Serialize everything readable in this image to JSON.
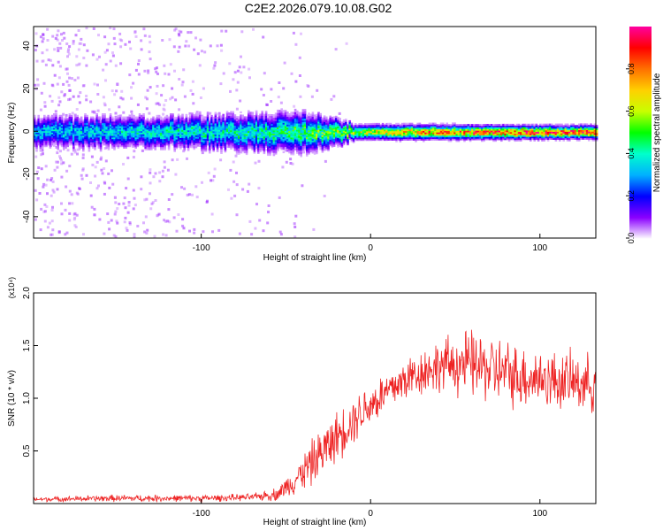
{
  "figure_title": "C2E2.2026.079.10.08.G02",
  "chart_data": [
    {
      "type": "heatmap",
      "name": "spectrogram",
      "xlabel": "Height of straight line (km)",
      "ylabel": "Frequency (Hz)",
      "xlim": [
        -199,
        133
      ],
      "ylim": [
        -50,
        49
      ],
      "x_ticks": [
        -100,
        0,
        100
      ],
      "y_ticks": [
        -40,
        -20,
        0,
        20,
        40
      ],
      "x_tick_labels": [
        "-100",
        "0",
        "100"
      ],
      "y_tick_labels": [
        "-40",
        "-20",
        "0",
        "20",
        "40"
      ],
      "band_center_hz": 0,
      "band_halfwidth_hz": [
        {
          "x": -199,
          "hw": 7
        },
        {
          "x": -120,
          "hw": 7
        },
        {
          "x": -40,
          "hw": 9
        },
        {
          "x": -20,
          "hw": 6
        },
        {
          "x": -10,
          "hw": 3.5
        },
        {
          "x": 133,
          "hw": 3
        }
      ],
      "peak_amplitude": [
        {
          "x": -199,
          "a": 0.35
        },
        {
          "x": -60,
          "a": 0.45
        },
        {
          "x": -10,
          "a": 0.6
        },
        {
          "x": 30,
          "a": 0.8
        },
        {
          "x": 133,
          "a": 0.95
        }
      ],
      "colorbar": {
        "label": "Normalized spectral amplitude",
        "range": [
          0,
          1
        ],
        "ticks": [
          0.0,
          0.2,
          0.4,
          0.6,
          0.8
        ],
        "tick_labels": [
          "0.0",
          "0.2",
          "0.4",
          "0.6",
          "0.8"
        ],
        "colors": [
          "#ffffff",
          "#8a00ff",
          "#0000ff",
          "#00b0ff",
          "#00ffcc",
          "#00ff00",
          "#c8ff00",
          "#ffd000",
          "#ff7000",
          "#ff0000",
          "#ff00a0"
        ]
      }
    },
    {
      "type": "line",
      "name": "snr",
      "xlabel": "Height of straight line (km)",
      "ylabel": "SNR (10 * v/v)",
      "multiplier_label": "(x10⁴)",
      "xlim": [
        -199,
        133
      ],
      "ylim": [
        0,
        2.0
      ],
      "x_ticks": [
        -100,
        0,
        100
      ],
      "y_ticks": [
        0.5,
        1.0,
        1.5,
        2.0
      ],
      "x_tick_labels": [
        "-100",
        "0",
        "100"
      ],
      "y_tick_labels": [
        "0.5",
        "1.0",
        "1.5",
        "2.0"
      ],
      "color": "#ee2222",
      "series_x": [
        -199,
        -150,
        -100,
        -70,
        -55,
        -45,
        -35,
        -25,
        -15,
        -5,
        5,
        15,
        25,
        35,
        45,
        55,
        65,
        75,
        85,
        95,
        105,
        115,
        125,
        133
      ],
      "series_mean": [
        0.04,
        0.05,
        0.05,
        0.06,
        0.09,
        0.22,
        0.38,
        0.55,
        0.72,
        0.88,
        1.0,
        1.12,
        1.22,
        1.28,
        1.32,
        1.33,
        1.3,
        1.26,
        1.22,
        1.2,
        1.18,
        1.16,
        1.15,
        1.14
      ],
      "series_spread": [
        0.02,
        0.03,
        0.03,
        0.03,
        0.06,
        0.12,
        0.2,
        0.22,
        0.22,
        0.2,
        0.2,
        0.2,
        0.2,
        0.22,
        0.24,
        0.3,
        0.3,
        0.3,
        0.28,
        0.28,
        0.26,
        0.26,
        0.25,
        0.25
      ]
    }
  ]
}
